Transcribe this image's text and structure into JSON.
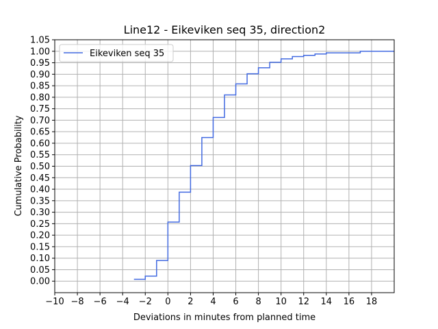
{
  "chart_data": {
    "type": "line",
    "title": "Line12 - Eikeviken seq 35, direction2",
    "xlabel": "Deviations in minutes from planned time",
    "ylabel": "Cumulative Probability",
    "xlim": [
      -10,
      20
    ],
    "ylim": [
      -0.05,
      1.05
    ],
    "xticks": [
      -10,
      -8,
      -6,
      -4,
      -2,
      0,
      2,
      4,
      6,
      8,
      10,
      12,
      14,
      16,
      18
    ],
    "xtick_labels": [
      "−10",
      "−8",
      "−6",
      "−4",
      "−2",
      "0",
      "2",
      "4",
      "6",
      "8",
      "10",
      "12",
      "14",
      "16",
      "18"
    ],
    "yticks": [
      0,
      0.05,
      0.1,
      0.15,
      0.2,
      0.25,
      0.3,
      0.35,
      0.4,
      0.45,
      0.5,
      0.55,
      0.6,
      0.65,
      0.7,
      0.75,
      0.8,
      0.85,
      0.9,
      0.95,
      1.0,
      1.05
    ],
    "ytick_labels": [
      "0.00",
      "0.05",
      "0.10",
      "0.15",
      "0.20",
      "0.25",
      "0.30",
      "0.35",
      "0.40",
      "0.45",
      "0.50",
      "0.55",
      "0.60",
      "0.65",
      "0.70",
      "0.75",
      "0.80",
      "0.85",
      "0.90",
      "0.95",
      "1.00",
      "1.05"
    ],
    "grid": true,
    "legend_position": "top-left",
    "series": [
      {
        "name": "Eikeviken seq 35",
        "color": "#4169e1",
        "step": "post",
        "x": [
          -3,
          -2,
          -1,
          0,
          1,
          2,
          3,
          4,
          5,
          6,
          7,
          8,
          9,
          10,
          11,
          12,
          13,
          14,
          17,
          20
        ],
        "y": [
          0.008,
          0.022,
          0.09,
          0.257,
          0.387,
          0.503,
          0.625,
          0.712,
          0.81,
          0.858,
          0.902,
          0.928,
          0.952,
          0.967,
          0.977,
          0.982,
          0.988,
          0.993,
          1.0,
          1.0
        ]
      }
    ]
  }
}
